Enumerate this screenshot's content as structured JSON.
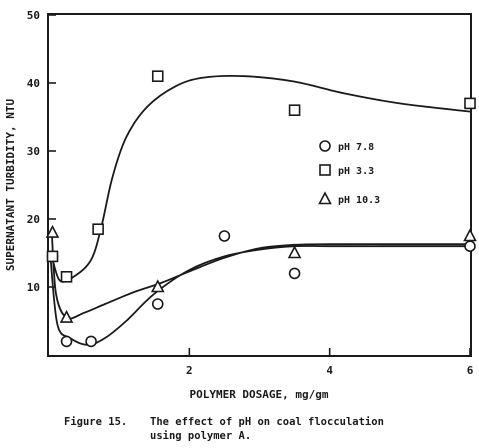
{
  "chart_data": {
    "type": "scatter",
    "xlabel": "POLYMER DOSAGE, mg/gm",
    "ylabel": "SUPERNATANT TURBIDITY, NTU",
    "xlim": [
      0,
      6
    ],
    "ylim": [
      0,
      50
    ],
    "xticks": [
      2,
      4,
      6
    ],
    "xtick_labels": [
      "2",
      "4",
      "6"
    ],
    "yticks": [
      10,
      20,
      30,
      40,
      50
    ],
    "ytick_labels": [
      "10",
      "20",
      "30",
      "40",
      "50"
    ],
    "grid": false,
    "legend_position": "right-middle",
    "caption_label": "Figure 15.",
    "caption_text_line1": "The effect of pH on coal flocculation",
    "caption_text_line2": "using polymer A.",
    "series": [
      {
        "name": "pH 7.8",
        "marker": "circle",
        "x": [
          0.05,
          0.25,
          0.6,
          1.55,
          2.5,
          3.5,
          6.0
        ],
        "y": [
          14.5,
          2.0,
          2.0,
          7.5,
          17.5,
          12.0,
          16.0
        ],
        "curve": {
          "x": [
            0.02,
            0.12,
            0.3,
            0.55,
            0.8,
            1.1,
            1.5,
            2.0,
            2.5,
            3.0,
            3.5,
            4.0,
            5.0,
            6.0
          ],
          "y": [
            14.5,
            4.5,
            2.5,
            1.5,
            2.5,
            5.0,
            9.0,
            12.5,
            14.5,
            15.5,
            16.0,
            16.0,
            16.0,
            16.0
          ]
        }
      },
      {
        "name": "pH 3.3",
        "marker": "square",
        "x": [
          0.05,
          0.25,
          0.7,
          1.55,
          3.5,
          6.0
        ],
        "y": [
          14.5,
          11.5,
          18.5,
          41.0,
          36.0,
          37.0
        ],
        "curve": {
          "x": [
            0.03,
            0.15,
            0.35,
            0.6,
            0.75,
            0.9,
            1.1,
            1.4,
            1.8,
            2.2,
            2.8,
            3.5,
            4.2,
            5.0,
            6.0
          ],
          "y": [
            15.0,
            11.0,
            11.5,
            14.0,
            19.0,
            26.0,
            32.0,
            36.5,
            39.5,
            40.8,
            41.0,
            40.2,
            38.5,
            37.0,
            35.8
          ]
        }
      },
      {
        "name": "pH 10.3",
        "marker": "triangle",
        "x": [
          0.05,
          0.25,
          1.55,
          3.5,
          6.0
        ],
        "y": [
          18.0,
          5.5,
          10.0,
          15.0,
          17.5
        ],
        "curve": {
          "x": [
            0.04,
            0.1,
            0.25,
            0.5,
            0.8,
            1.2,
            1.6,
            2.0,
            2.5,
            3.0,
            3.5,
            4.0,
            5.0,
            6.0
          ],
          "y": [
            18.0,
            9.0,
            5.5,
            6.2,
            7.5,
            9.2,
            10.6,
            12.3,
            14.3,
            15.7,
            16.2,
            16.3,
            16.3,
            16.3
          ]
        }
      }
    ]
  }
}
